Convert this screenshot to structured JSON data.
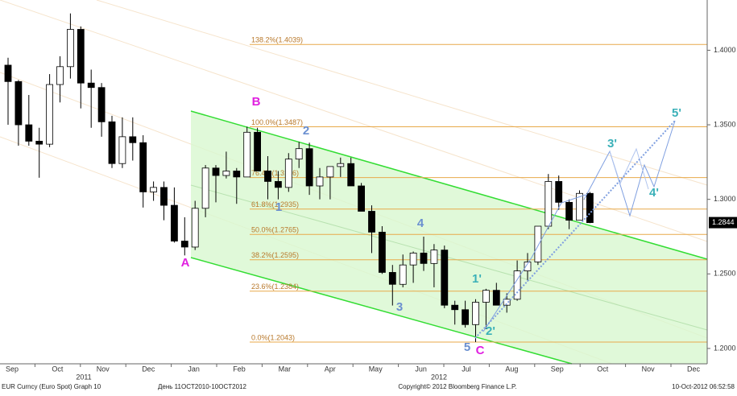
{
  "chart_data": {
    "type": "candlestick",
    "open": [
      1.39,
      1.379,
      1.35,
      1.339,
      1.337,
      1.377,
      1.389,
      1.414,
      1.378,
      1.375,
      1.352,
      1.324,
      1.342,
      1.338,
      1.305,
      1.308,
      1.296,
      1.272,
      1.268,
      1.294,
      1.321,
      1.316,
      1.319,
      1.315,
      1.345,
      1.319,
      1.312,
      1.308,
      1.327,
      1.334,
      1.309,
      1.315,
      1.322,
      1.324,
      1.309,
      1.292,
      1.278,
      1.251,
      1.243,
      1.256,
      1.264,
      1.257,
      1.266,
      1.229,
      1.226,
      1.216,
      1.231,
      1.239,
      1.229,
      1.233,
      1.252,
      1.258,
      1.282,
      1.312,
      1.298,
      1.286,
      1.304
    ],
    "high": [
      1.395,
      1.38,
      1.37,
      1.348,
      1.384,
      1.396,
      1.4247,
      1.416,
      1.387,
      1.378,
      1.356,
      1.355,
      1.355,
      1.343,
      1.312,
      1.312,
      1.308,
      1.288,
      1.299,
      1.323,
      1.323,
      1.332,
      1.321,
      1.3487,
      1.348,
      1.329,
      1.319,
      1.331,
      1.3385,
      1.338,
      1.321,
      1.322,
      1.328,
      1.328,
      1.311,
      1.296,
      1.282,
      1.256,
      1.263,
      1.265,
      1.275,
      1.27,
      1.269,
      1.232,
      1.232,
      1.233,
      1.24,
      1.244,
      1.237,
      1.259,
      1.264,
      1.282,
      1.317,
      1.316,
      1.3,
      1.306,
      1.305
    ],
    "low": [
      1.35,
      1.336,
      1.336,
      1.3145,
      1.335,
      1.365,
      1.381,
      1.361,
      1.348,
      1.342,
      1.321,
      1.321,
      1.326,
      1.2945,
      1.299,
      1.286,
      1.271,
      1.2624,
      1.266,
      1.288,
      1.298,
      1.314,
      1.297,
      1.315,
      1.319,
      1.3,
      1.3,
      1.305,
      1.321,
      1.303,
      1.3,
      1.3,
      1.315,
      1.309,
      1.292,
      1.264,
      1.25,
      1.2288,
      1.241,
      1.244,
      1.252,
      1.241,
      1.227,
      1.216,
      1.214,
      1.2043,
      1.213,
      1.229,
      1.224,
      1.232,
      1.245,
      1.256,
      1.28,
      1.293,
      1.28,
      1.286,
      1.284
    ],
    "close": [
      1.379,
      1.35,
      1.339,
      1.337,
      1.377,
      1.389,
      1.414,
      1.378,
      1.375,
      1.352,
      1.324,
      1.342,
      1.338,
      1.305,
      1.308,
      1.296,
      1.272,
      1.268,
      1.294,
      1.321,
      1.316,
      1.319,
      1.315,
      1.345,
      1.319,
      1.312,
      1.308,
      1.327,
      1.334,
      1.309,
      1.315,
      1.322,
      1.324,
      1.309,
      1.292,
      1.278,
      1.251,
      1.243,
      1.256,
      1.264,
      1.257,
      1.266,
      1.229,
      1.226,
      1.216,
      1.231,
      1.239,
      1.229,
      1.233,
      1.252,
      1.258,
      1.282,
      1.312,
      1.298,
      1.286,
      1.304,
      1.2844
    ],
    "up_color": "#ffffff",
    "down_color": "#000000",
    "ylim": [
      1.1897,
      1.4337
    ],
    "yticks": [
      {
        "value": 1.2,
        "label": "1.2000"
      },
      {
        "value": 1.25,
        "label": "1.2500"
      },
      {
        "value": 1.3,
        "label": "1.3000"
      },
      {
        "value": 1.35,
        "label": "1.3500"
      },
      {
        "value": 1.4,
        "label": "1.4000"
      }
    ],
    "last_price": 1.2844,
    "fib_levels": [
      {
        "value": 1.4039,
        "label": "138.2%(1.4039)"
      },
      {
        "value": 1.3487,
        "label": "100.0%(1.3487)"
      },
      {
        "value": 1.3146,
        "label": "76.4%(1.3146)"
      },
      {
        "value": 1.2935,
        "label": "61.8%(1.2935)"
      },
      {
        "value": 1.2765,
        "label": "50.0%(1.2765)"
      },
      {
        "value": 1.2595,
        "label": "38.2%(1.2595)"
      },
      {
        "value": 1.2384,
        "label": "23.6%(1.2384)"
      },
      {
        "value": 1.2043,
        "label": "0.0%(1.2043)"
      }
    ],
    "fib_color": "#e8a94a",
    "months": [
      "Sep",
      "Oct",
      "Nov",
      "Dec",
      "Jan",
      "Feb",
      "Mar",
      "Apr",
      "May",
      "Jun",
      "Jul",
      "Aug",
      "Sep",
      "Oct",
      "Nov",
      "Dec"
    ],
    "years": [
      "2011",
      "2012"
    ],
    "wave_labels": [
      "A",
      "B",
      "C",
      "1",
      "2",
      "3",
      "4",
      "5",
      "1'",
      "2'",
      "3'",
      "4'",
      "5'"
    ],
    "footer": [
      "EUR Curncy (Euro Spot) Graph 10",
      "День 11OCT2010-10OCT2012",
      "Copyright© 2012 Bloomberg Finance L.P.",
      "10-Oct-2012 06:52:58"
    ]
  }
}
